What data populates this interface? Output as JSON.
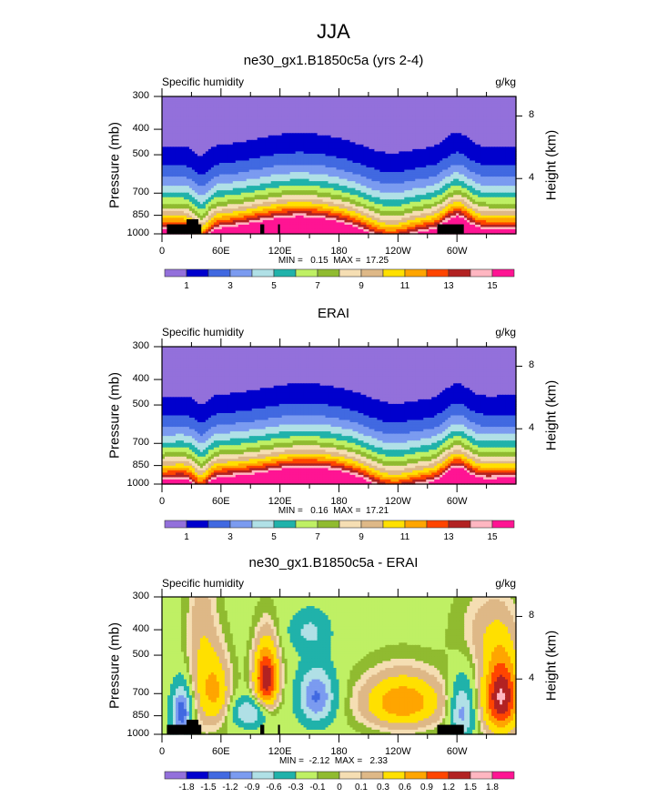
{
  "page": {
    "main_title": "JJA"
  },
  "chart_data": [
    {
      "type": "heatmap",
      "title": "ne30_gx1.B1850c5a (yrs 2-4)",
      "left_string": "Specific humidity",
      "right_string": "g/kg",
      "ylabel": "Pressure (mb)",
      "ylabel_right": "Height (km)",
      "xlabel": "",
      "yticks": [
        "300",
        "400",
        "500",
        "700",
        "850",
        "1000"
      ],
      "ytick_values": [
        300,
        400,
        500,
        700,
        850,
        1000
      ],
      "ylim": [
        1000,
        300
      ],
      "right_ticks": [
        "8",
        "4"
      ],
      "xticks": [
        "0",
        "60E",
        "120E",
        "180",
        "120W",
        "60W"
      ],
      "xlim": [
        0,
        360
      ],
      "min_label": "MIN =   0.15  MAX =  17.25",
      "min": 0.15,
      "max": 17.25,
      "colorbar_labels": [
        "1",
        "3",
        "5",
        "7",
        "9",
        "11",
        "13",
        "15"
      ],
      "contour_levels": [
        1,
        2,
        3,
        4,
        5,
        6,
        7,
        8,
        9,
        10,
        11,
        12,
        13,
        14,
        15
      ],
      "colors": [
        "#9370db",
        "#0000cd",
        "#4169e1",
        "#7b9bf0",
        "#b0e0e6",
        "#20b2aa",
        "#bff064",
        "#90bb30",
        "#f5deb3",
        "#deb887",
        "#ffe000",
        "#ffa500",
        "#ff4500",
        "#b22222",
        "#ffb6c1",
        "#ff1493"
      ]
    },
    {
      "type": "heatmap",
      "title": "ERAI",
      "left_string": "Specific humidity",
      "right_string": "g/kg",
      "ylabel": "Pressure (mb)",
      "ylabel_right": "Height (km)",
      "yticks": [
        "300",
        "400",
        "500",
        "700",
        "850",
        "1000"
      ],
      "ytick_values": [
        300,
        400,
        500,
        700,
        850,
        1000
      ],
      "ylim": [
        1000,
        300
      ],
      "right_ticks": [
        "8",
        "4"
      ],
      "xticks": [
        "0",
        "60E",
        "120E",
        "180",
        "120W",
        "60W"
      ],
      "xlim": [
        0,
        360
      ],
      "min_label": "MIN =   0.16  MAX =  17.21",
      "min": 0.16,
      "max": 17.21,
      "colorbar_labels": [
        "1",
        "3",
        "5",
        "7",
        "9",
        "11",
        "13",
        "15"
      ],
      "contour_levels": [
        1,
        2,
        3,
        4,
        5,
        6,
        7,
        8,
        9,
        10,
        11,
        12,
        13,
        14,
        15
      ],
      "colors": [
        "#9370db",
        "#0000cd",
        "#4169e1",
        "#7b9bf0",
        "#b0e0e6",
        "#20b2aa",
        "#bff064",
        "#90bb30",
        "#f5deb3",
        "#deb887",
        "#ffe000",
        "#ffa500",
        "#ff4500",
        "#b22222",
        "#ffb6c1",
        "#ff1493"
      ]
    },
    {
      "type": "heatmap",
      "title": "ne30_gx1.B1850c5a - ERAI",
      "left_string": "Specific humidity",
      "right_string": "g/kg",
      "ylabel": "Pressure (mb)",
      "ylabel_right": "Height (km)",
      "yticks": [
        "300",
        "400",
        "500",
        "700",
        "850",
        "1000"
      ],
      "ytick_values": [
        300,
        400,
        500,
        700,
        850,
        1000
      ],
      "ylim": [
        1000,
        300
      ],
      "right_ticks": [
        "8",
        "4"
      ],
      "xticks": [
        "0",
        "60E",
        "120E",
        "180",
        "120W",
        "60W"
      ],
      "xlim": [
        0,
        360
      ],
      "min_label": "MIN =  -2.12  MAX =   2.33",
      "min": -2.12,
      "max": 2.33,
      "colorbar_labels": [
        "-1.8",
        "-1.5",
        "-1.2",
        "-0.9",
        "-0.6",
        "-0.3",
        "-0.1",
        "0",
        "0.1",
        "0.3",
        "0.6",
        "0.9",
        "1.2",
        "1.5",
        "1.8"
      ],
      "contour_levels": [
        -1.8,
        -1.5,
        -1.2,
        -0.9,
        -0.6,
        -0.3,
        -0.1,
        0,
        0.1,
        0.3,
        0.6,
        0.9,
        1.2,
        1.5,
        1.8
      ],
      "colors": [
        "#9370db",
        "#0000cd",
        "#4169e1",
        "#7b9bf0",
        "#b0e0e6",
        "#20b2aa",
        "#bff064",
        "#90bb30",
        "#f5deb3",
        "#deb887",
        "#ffe000",
        "#ffa500",
        "#ff4500",
        "#b22222",
        "#ffb6c1",
        "#ff1493"
      ]
    }
  ]
}
